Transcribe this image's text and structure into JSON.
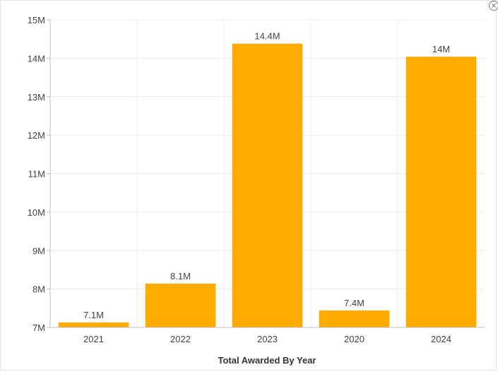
{
  "chart_data": {
    "type": "bar",
    "categories": [
      "2021",
      "2022",
      "2023",
      "2020",
      "2024"
    ],
    "values": [
      7.13,
      8.14,
      14.38,
      7.44,
      14.04
    ],
    "data_labels": [
      "7.1M",
      "8.1M",
      "14.4M",
      "7.4M",
      "14M"
    ],
    "xlabel": "Total Awarded By Year",
    "ylabel": "",
    "ylim": [
      7,
      15
    ],
    "y_ticks": [
      7,
      8,
      9,
      10,
      11,
      12,
      13,
      14,
      15
    ],
    "y_tick_labels": [
      "7M",
      "8M",
      "9M",
      "10M",
      "11M",
      "12M",
      "13M",
      "14M",
      "15M"
    ],
    "grid": true,
    "bar_color": "#ffab00"
  },
  "icons": {
    "expand": "expand-icon"
  }
}
